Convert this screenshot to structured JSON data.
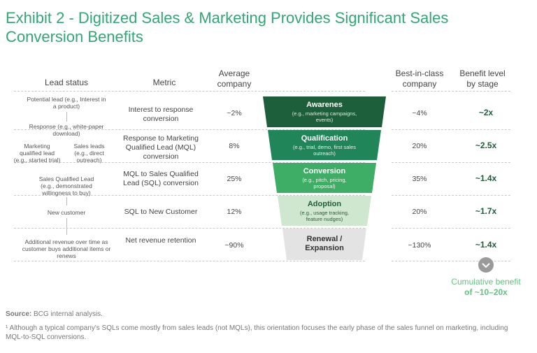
{
  "title": "Exhibit 2 - Digitized Sales & Marketing Provides Significant Sales Conversion Benefits",
  "headers": {
    "lead_status": "Lead status",
    "metric": "Metric",
    "average": "Average company",
    "best": "Best-in-class company",
    "benefit": "Benefit level by stage"
  },
  "lead": {
    "potential": "Potential lead (e.g., Interest in a product)",
    "response": "Response (e.g., white-paper download)",
    "mql": "Marketing qualified lead (e.g., started trial)",
    "sales_leads": "Sales leads (e.g., direct outreach)",
    "sql": "Sales Qualified Lead (e.g., demonstrated willingness to buy)",
    "new_customer": "New customer",
    "additional": "Additional revenue over time as customer buys additional items or renews"
  },
  "rows": [
    {
      "metric": "Interest to response conversion",
      "average": "~2%",
      "stage": "Awarenes",
      "stage_sub": "(e.g., marketing campaigns, events)",
      "best": "~4%",
      "benefit": "~2x"
    },
    {
      "metric": "Response to Marketing Qualified Lead (MQL) conversion",
      "average": "8%",
      "stage": "Qualification",
      "stage_sub": "(e.g., trial, demo, first sales outreach)",
      "best": "20%",
      "benefit": "~2.5x"
    },
    {
      "metric": "MQL to Sales Qualified Lead (SQL) conversion",
      "average": "25%",
      "stage": "Conversion",
      "stage_sub": "(e.g., pitch, pricing, proposal)",
      "best": "35%",
      "benefit": "~1.4x"
    },
    {
      "metric": "SQL to New Customer",
      "average": "12%",
      "stage": "Adoption",
      "stage_sub": "(e.g., usage tracking, feature nudges)",
      "best": "20%",
      "benefit": "~1.7x"
    },
    {
      "metric": "Net revenue retention",
      "average": "~90%",
      "stage": "Renewal / Expansion",
      "stage_sub": "",
      "best": "~130%",
      "benefit": "~1.4x"
    }
  ],
  "cumulative": {
    "line1": "Cumulative benefit",
    "line2": "of ~10–20x"
  },
  "source_label": "Source:",
  "source_text": "BCG internal analysis.",
  "footnote": "¹ Although a typical company's SQLs come mostly from sales leads (not MQLs), this orientation focuses the early phase of the sales funnel on marketing, including MQL-to-SQL conversions.",
  "colors": {
    "title": "#32a677",
    "stage1": "#1d5e3b",
    "stage2": "#21855a",
    "stage3": "#3ead65",
    "stage4": "#cfe6cf",
    "stage5": "#e3e3e3",
    "cumulative": "#5ec47e"
  }
}
